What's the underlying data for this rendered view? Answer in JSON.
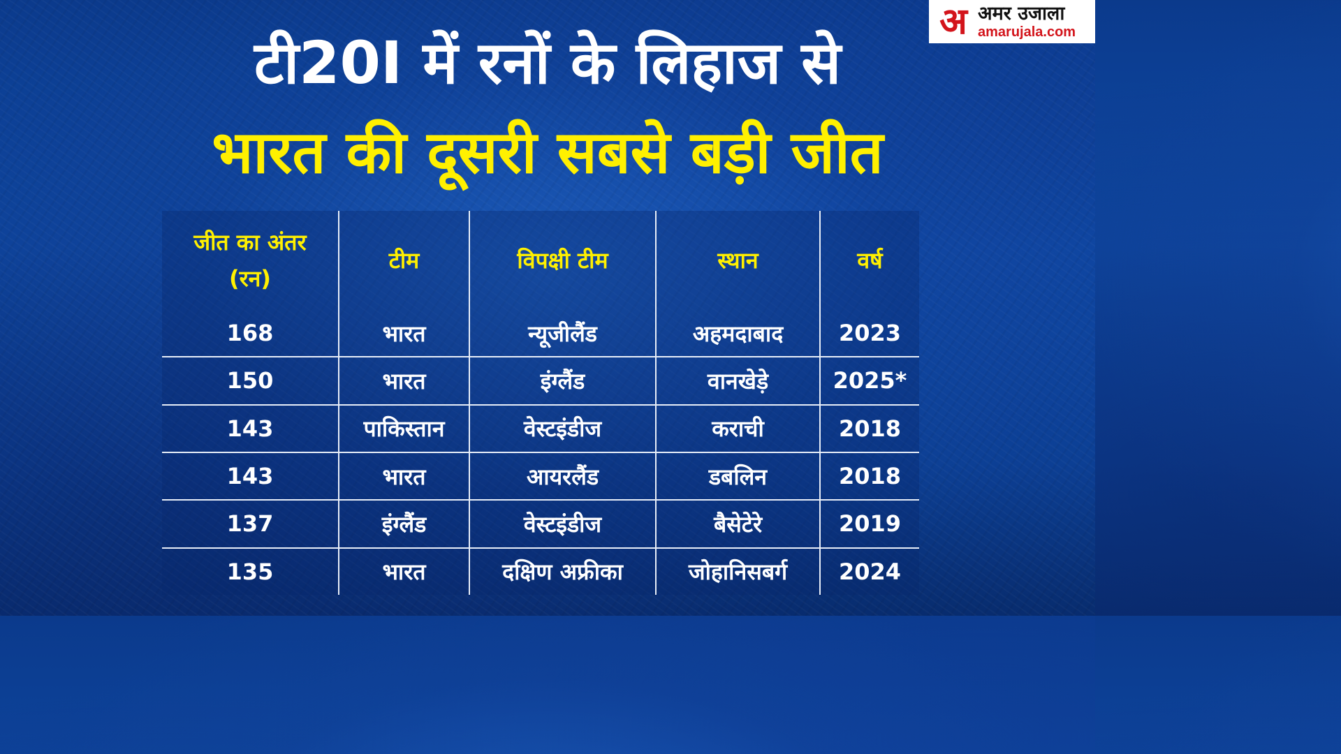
{
  "logo": {
    "mark": "अ",
    "name": "अमर उजाला",
    "url": "amarujala.com"
  },
  "headline": {
    "line1": "टी20I में रनों के लिहाज से",
    "line2": "भारत की दूसरी सबसे बड़ी जीत"
  },
  "table": {
    "headers": {
      "margin_line1": "जीत का अंतर",
      "margin_line2": "(रन)",
      "team": "टीम",
      "opponent": "विपक्षी टीम",
      "venue": "स्थान",
      "year": "वर्ष"
    },
    "rows": [
      {
        "margin": "168",
        "team": "भारत",
        "opponent": "न्यूजीलैंड",
        "venue": "अहमदाबाद",
        "year": "2023"
      },
      {
        "margin": "150",
        "team": "भारत",
        "opponent": "इंग्लैंड",
        "venue": "वानखेड़े",
        "year": "2025*"
      },
      {
        "margin": "143",
        "team": "पाकिस्तान",
        "opponent": "वेस्टइंडीज",
        "venue": "कराची",
        "year": "2018"
      },
      {
        "margin": "143",
        "team": "भारत",
        "opponent": "आयरलैंड",
        "venue": "डबलिन",
        "year": "2018"
      },
      {
        "margin": "137",
        "team": "इंग्लैंड",
        "opponent": "वेस्टइंडीज",
        "venue": "बैसेटेरे",
        "year": "2019"
      },
      {
        "margin": "135",
        "team": "भारत",
        "opponent": "दक्षिण अफ्रीका",
        "venue": "जोहानिसबर्ग",
        "year": "2024"
      }
    ]
  },
  "colors": {
    "background": "#0f4aa6",
    "headline_primary": "#ffffff",
    "headline_accent": "#fff000",
    "table_header_text": "#fff000",
    "table_body_text": "#ffffff",
    "table_lines": "#e8eef8",
    "logo_red": "#d3141b"
  }
}
